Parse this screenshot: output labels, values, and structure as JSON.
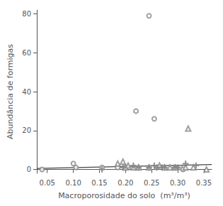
{
  "chart_data": {
    "type": "scatter",
    "xlabel": "Macroporosidade do solo  (m³/m³)",
    "ylabel": "Abundância de formigas",
    "xlim": [
      0.03,
      0.365
    ],
    "ylim": [
      -2,
      82
    ],
    "xticks": [
      0.05,
      {
        "value": 0.1,
        "label": "0.10"
      },
      0.15,
      {
        "value": 0.2,
        "label": "0.20"
      },
      0.25,
      {
        "value": 0.3,
        "label": "0.30"
      },
      0.35
    ],
    "yticks": [
      0,
      20,
      40,
      60,
      80
    ],
    "grid": false,
    "series": [
      {
        "type": "scatter",
        "marker": "open_circle",
        "color": "#888888",
        "x": [
          0.04,
          0.1,
          0.105,
          0.155,
          0.185,
          0.2,
          0.22,
          0.245,
          0.255,
          0.26,
          0.295,
          0.305,
          0.31
        ],
        "values": [
          0,
          3,
          1,
          1,
          1,
          1,
          30,
          79,
          26,
          1,
          1,
          1,
          0
        ]
      },
      {
        "type": "scatter",
        "marker": "open_triangle",
        "color": "#888888",
        "x": [
          0.185,
          0.195,
          0.2,
          0.205,
          0.215,
          0.225,
          0.245,
          0.265,
          0.275,
          0.285,
          0.295,
          0.32,
          0.315,
          0.33,
          0.355
        ],
        "values": [
          3,
          4,
          1,
          2,
          1,
          1,
          1,
          2,
          1,
          1,
          1,
          21,
          1,
          1,
          0
        ]
      },
      {
        "type": "scatter",
        "marker": "plus",
        "color": "#888888",
        "x": [
          0.155,
          0.195,
          0.215,
          0.225,
          0.245,
          0.255,
          0.26,
          0.27,
          0.275,
          0.295,
          0.3,
          0.315,
          0.335
        ],
        "values": [
          0,
          1,
          2,
          1,
          1,
          2,
          1,
          1,
          1,
          1,
          1,
          3,
          2
        ]
      },
      {
        "type": "line",
        "color": "#444444",
        "x": [
          0.03,
          0.365
        ],
        "values": [
          0.5,
          2.5
        ]
      }
    ]
  }
}
